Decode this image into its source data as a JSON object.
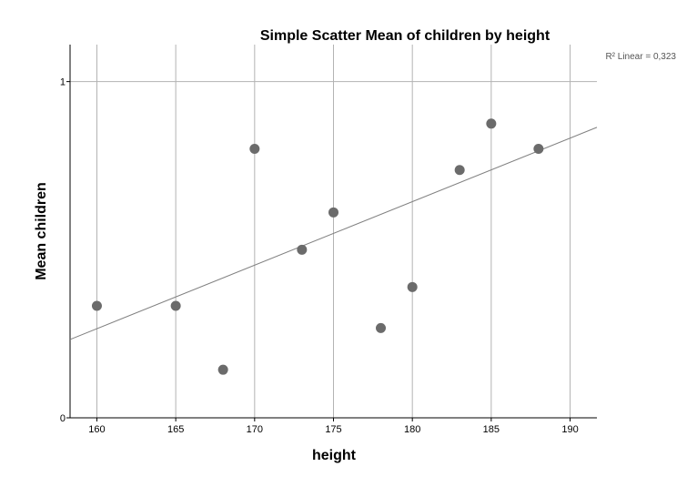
{
  "chart_data": {
    "type": "scatter",
    "title": "Simple Scatter Mean of children by height",
    "xlabel": "height",
    "ylabel": "Mean children",
    "xlim": [
      158.3,
      191.7
    ],
    "ylim": [
      0,
      1.11
    ],
    "xticks": [
      160,
      165,
      170,
      175,
      180,
      185,
      190
    ],
    "yticks": [
      0,
      1
    ],
    "grid": "vertical lines at x ticks, horizontal line at y = 1",
    "points": [
      {
        "x": 160,
        "y": 0.333
      },
      {
        "x": 165,
        "y": 0.333
      },
      {
        "x": 168,
        "y": 0.143
      },
      {
        "x": 170,
        "y": 0.8
      },
      {
        "x": 173,
        "y": 0.5
      },
      {
        "x": 175,
        "y": 0.611
      },
      {
        "x": 178,
        "y": 0.267
      },
      {
        "x": 180,
        "y": 0.389
      },
      {
        "x": 183,
        "y": 0.737
      },
      {
        "x": 185,
        "y": 0.875
      },
      {
        "x": 188,
        "y": 0.8
      }
    ],
    "fit_line": {
      "x": [
        158.3,
        191.7
      ],
      "y": [
        0.233,
        0.864
      ]
    },
    "fit_label": "R² Linear = 0,323",
    "colors": {
      "points": "#6b6b6b",
      "fit": "#808080",
      "grid": "#b3b3b3",
      "axis": "#000000"
    }
  }
}
